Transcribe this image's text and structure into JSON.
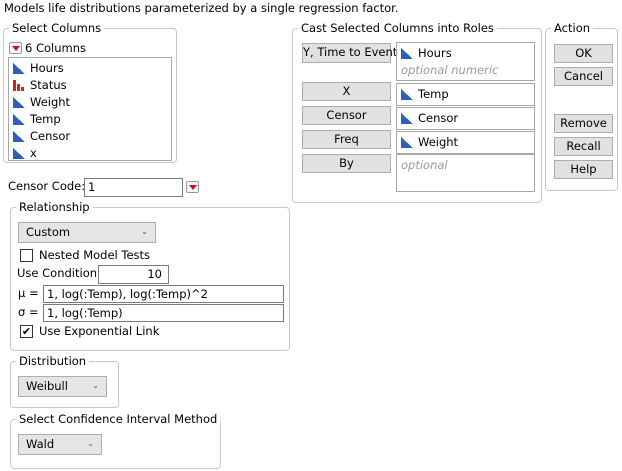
{
  "description": "Models life distributions parameterized by a single regression factor.",
  "select_columns": {
    "title": "Select Columns",
    "count_label": "6 Columns",
    "columns": [
      {
        "name": "Hours",
        "type": "continuous"
      },
      {
        "name": "Status",
        "type": "nominal"
      },
      {
        "name": "Weight",
        "type": "continuous"
      },
      {
        "name": "Temp",
        "type": "continuous"
      },
      {
        "name": "Censor",
        "type": "continuous"
      },
      {
        "name": "x",
        "type": "continuous"
      }
    ]
  },
  "censor_code": {
    "label": "Censor Code:",
    "value": "1"
  },
  "cast": {
    "title": "Cast Selected Columns into Roles",
    "roles": [
      {
        "button": "Y, Time to Event",
        "assigned": "Hours",
        "placeholder": "optional numeric"
      },
      {
        "button": "X",
        "assigned": "Temp"
      },
      {
        "button": "Censor",
        "assigned": "Censor"
      },
      {
        "button": "Freq",
        "assigned": "Weight"
      },
      {
        "button": "By",
        "placeholder": "optional"
      }
    ]
  },
  "action": {
    "title": "Action",
    "ok": "OK",
    "cancel": "Cancel",
    "remove": "Remove",
    "recall": "Recall",
    "help": "Help"
  },
  "relationship": {
    "title": "Relationship",
    "selected": "Custom",
    "nested_label": "Nested Model Tests",
    "nested_checked": false,
    "use_condition_label": "Use Condition",
    "use_condition_value": "10",
    "mu_label": "μ =",
    "mu_value": "1, log(:Temp), log(:Temp)^2",
    "sigma_label": "σ =",
    "sigma_value": "1, log(:Temp)",
    "exp_link_label": "Use Exponential Link",
    "exp_link_checked": true
  },
  "distribution": {
    "title": "Distribution",
    "selected": "Weibull"
  },
  "ci_method": {
    "title": "Select Confidence Interval Method",
    "selected": "Wald"
  },
  "colors": {
    "continuous_icon": "#2e5eb7",
    "nominal_icon": "#c8281e",
    "red_triangle": "#d0101a"
  }
}
